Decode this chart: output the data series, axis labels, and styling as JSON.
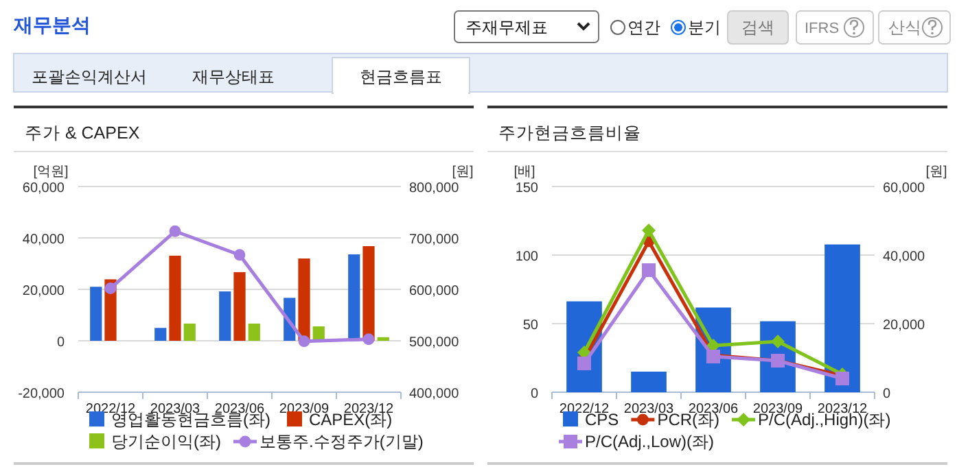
{
  "chart_data": [
    {
      "type": "other",
      "title": "재무분석",
      "annotations": [
        "주재무제표",
        "연간",
        "분기",
        "검색",
        "IFRS",
        "산식",
        "포괄손익계산서",
        "재무상태표",
        "현금흐름표"
      ]
    },
    {
      "type": "bar",
      "title": "주가 & CAPEX",
      "ylabel": "[억원]",
      "y2label": "[원]",
      "categories": [
        "2022/12",
        "2023/03",
        "2023/06",
        "2023/09",
        "2023/12"
      ],
      "series": [
        {
          "name": "영업활동현금흐름(좌)",
          "color": "#2a6ad8",
          "values": [
            21000,
            5000,
            19200,
            16700,
            33600
          ]
        },
        {
          "name": "CAPEX(좌)",
          "color": "#cc3300",
          "values": [
            23900,
            33100,
            26700,
            32000,
            36800
          ]
        },
        {
          "name": "당기순이익(좌)",
          "color": "#8cc21a",
          "values": [
            null,
            6700,
            6700,
            5600,
            1400
          ]
        },
        {
          "name": "보통주.수정주가(기말)",
          "type": "line",
          "axis": "y2",
          "color": "#a57ee0",
          "marker": "circle",
          "values": [
            602000,
            713000,
            667000,
            499000,
            503000
          ]
        }
      ],
      "ylim": [
        -20000,
        60000
      ],
      "yticks": [
        {
          "value": -20000,
          "label": "-20,000"
        },
        {
          "value": 0,
          "label": "0"
        },
        {
          "value": 20000,
          "label": "20,000"
        },
        {
          "value": 40000,
          "label": "40,000"
        },
        {
          "value": 60000,
          "label": "60,000"
        }
      ],
      "y2lim": [
        400000,
        800000
      ],
      "y2ticks": [
        {
          "value": 400000,
          "label": "400,000"
        },
        {
          "value": 500000,
          "label": "500,000"
        },
        {
          "value": 600000,
          "label": "600,000"
        },
        {
          "value": 700000,
          "label": "700,000"
        },
        {
          "value": 800000,
          "label": "800,000"
        }
      ],
      "grid": "y",
      "legend": "bottom"
    },
    {
      "type": "bar",
      "title": "주가현금흐름비율",
      "ylabel": "[배]",
      "y2label": "[원]",
      "categories": [
        "2022/12",
        "2023/03",
        "2023/06",
        "2023/09",
        "2023/12"
      ],
      "series": [
        {
          "name": "CPS",
          "axis": "y2",
          "color": "#2167d8",
          "values": [
            26500,
            6000,
            24700,
            20700,
            43100
          ]
        },
        {
          "name": "PCR(좌)",
          "type": "line",
          "color": "#c8320a",
          "marker": "circle",
          "values": [
            24,
            110,
            27,
            23,
            12
          ]
        },
        {
          "name": "P/C(Adj.,High)(좌)",
          "type": "line",
          "color": "#7fc31c",
          "marker": "diamond",
          "values": [
            29,
            118,
            34,
            37,
            13
          ]
        },
        {
          "name": "P/C(Adj.,Low)(좌)",
          "type": "line",
          "color": "#a97fe0",
          "marker": "square",
          "values": [
            21,
            89,
            26,
            23,
            10
          ]
        }
      ],
      "ylim": [
        0,
        150
      ],
      "yticks": [
        0,
        50,
        100,
        150
      ],
      "y2lim": [
        0,
        60000
      ],
      "y2ticks": [
        {
          "value": 0,
          "label": "0"
        },
        {
          "value": 20000,
          "label": "20,000"
        },
        {
          "value": 40000,
          "label": "40,000"
        },
        {
          "value": 60000,
          "label": "60,000"
        }
      ],
      "grid": "y",
      "legend": "bottom"
    }
  ]
}
